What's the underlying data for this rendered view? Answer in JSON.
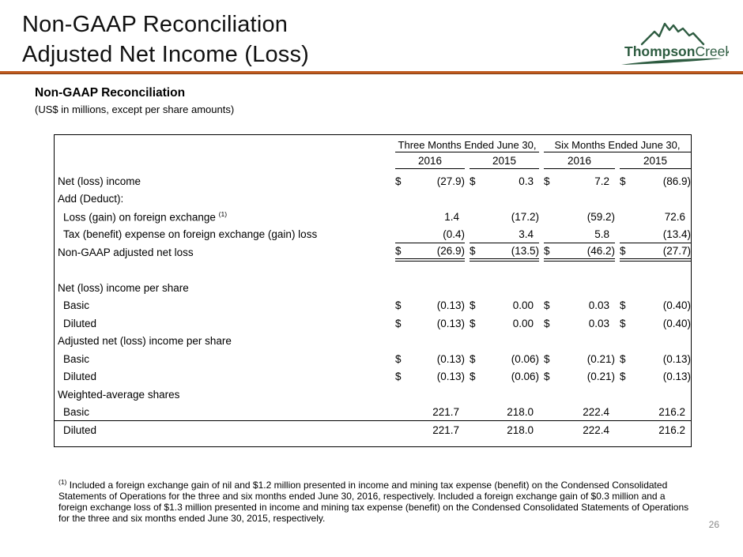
{
  "slide": {
    "title_line1": "Non-GAAP Reconciliation",
    "title_line2": "Adjusted Net Income (Loss)",
    "page_number": "26"
  },
  "logo": {
    "text_bold": "Thompson",
    "text_regular": "Creek",
    "color": "#2E5C41"
  },
  "colors": {
    "divider_orange": "#BF5A1E",
    "logo_green": "#2E5C41",
    "page_number_gray": "#8A8A8A",
    "text_black": "#000000"
  },
  "section": {
    "heading": "Non-GAAP Reconciliation",
    "subheading": "(US$ in millions, except per share amounts)"
  },
  "table": {
    "col_groups": [
      {
        "label": "Three Months Ended June 30,"
      },
      {
        "label": "Six Months Ended June 30,"
      }
    ],
    "years": [
      "2016",
      "2015",
      "2016",
      "2015"
    ],
    "rows": [
      {
        "label": "Net (loss) income",
        "indent": 0,
        "cells": [
          {
            "d": "$",
            "v": "(27.9)"
          },
          {
            "d": "$",
            "v": "0.3"
          },
          {
            "d": "$",
            "v": "7.2"
          },
          {
            "d": "$",
            "v": "(86.9)"
          }
        ]
      },
      {
        "label": "Add (Deduct):",
        "indent": 0,
        "cells": []
      },
      {
        "label": "Loss (gain) on foreign exchange",
        "sup": "(1)",
        "indent": 1,
        "cells": [
          {
            "v": "1.4"
          },
          {
            "v": "(17.2)"
          },
          {
            "v": "(59.2)"
          },
          {
            "v": "72.6"
          }
        ]
      },
      {
        "label": "Tax (benefit) expense on foreign exchange (gain) loss",
        "indent": 1,
        "rule": "single",
        "cells": [
          {
            "v": "(0.4)"
          },
          {
            "v": "3.4"
          },
          {
            "v": "5.8"
          },
          {
            "v": "(13.4)"
          }
        ]
      },
      {
        "label": "Non-GAAP adjusted net loss",
        "indent": 0,
        "rule": "double",
        "cells": [
          {
            "d": "$",
            "v": "(26.9)"
          },
          {
            "d": "$",
            "v": "(13.5)"
          },
          {
            "d": "$",
            "v": "(46.2)"
          },
          {
            "d": "$",
            "v": "(27.7)"
          }
        ]
      },
      {
        "label": "",
        "indent": 0,
        "cells": [],
        "spacer": true
      },
      {
        "label": "Net (loss) income per share",
        "indent": 0,
        "cells": []
      },
      {
        "label": "Basic",
        "indent": 1,
        "cells": [
          {
            "d": "$",
            "v": "(0.13)"
          },
          {
            "d": "$",
            "v": "0.00"
          },
          {
            "d": "$",
            "v": "0.03"
          },
          {
            "d": "$",
            "v": "(0.40)"
          }
        ]
      },
      {
        "label": "Diluted",
        "indent": 1,
        "cells": [
          {
            "d": "$",
            "v": "(0.13)"
          },
          {
            "d": "$",
            "v": "0.00"
          },
          {
            "d": "$",
            "v": "0.03"
          },
          {
            "d": "$",
            "v": "(0.40)"
          }
        ]
      },
      {
        "label": "Adjusted net (loss) income per share",
        "indent": 0,
        "cells": []
      },
      {
        "label": "Basic",
        "indent": 1,
        "cells": [
          {
            "d": "$",
            "v": "(0.13)"
          },
          {
            "d": "$",
            "v": "(0.06)"
          },
          {
            "d": "$",
            "v": "(0.21)"
          },
          {
            "d": "$",
            "v": "(0.13)"
          }
        ]
      },
      {
        "label": "Diluted",
        "indent": 1,
        "cells": [
          {
            "d": "$",
            "v": "(0.13)"
          },
          {
            "d": "$",
            "v": "(0.06)"
          },
          {
            "d": "$",
            "v": "(0.21)"
          },
          {
            "d": "$",
            "v": "(0.13)"
          }
        ]
      },
      {
        "label": "Weighted-average shares",
        "indent": 0,
        "cells": []
      },
      {
        "label": "Basic",
        "indent": 1,
        "row_rule": true,
        "cells": [
          {
            "v": "221.7"
          },
          {
            "v": "218.0"
          },
          {
            "v": "222.4"
          },
          {
            "v": "216.2"
          }
        ]
      },
      {
        "label": "Diluted",
        "indent": 1,
        "cells": [
          {
            "v": "221.7"
          },
          {
            "v": "218.0"
          },
          {
            "v": "222.4"
          },
          {
            "v": "216.2"
          }
        ]
      }
    ]
  },
  "footnote": {
    "marker": "(1)",
    "lines": [
      "Included a foreign exchange gain of nil and $1.2 million presented in income and mining tax expense (benefit) on the Condensed Consolidated",
      "Statements of Operations for the three and six months ended June 30, 2016, respectively. Included a foreign exchange gain of $0.3 million and a",
      "foreign exchange loss of $1.3 million presented in income and mining tax expense (benefit) on the Condensed Consolidated Statements of Operations",
      "for the three and six months ended June 30, 2015, respectively."
    ]
  }
}
